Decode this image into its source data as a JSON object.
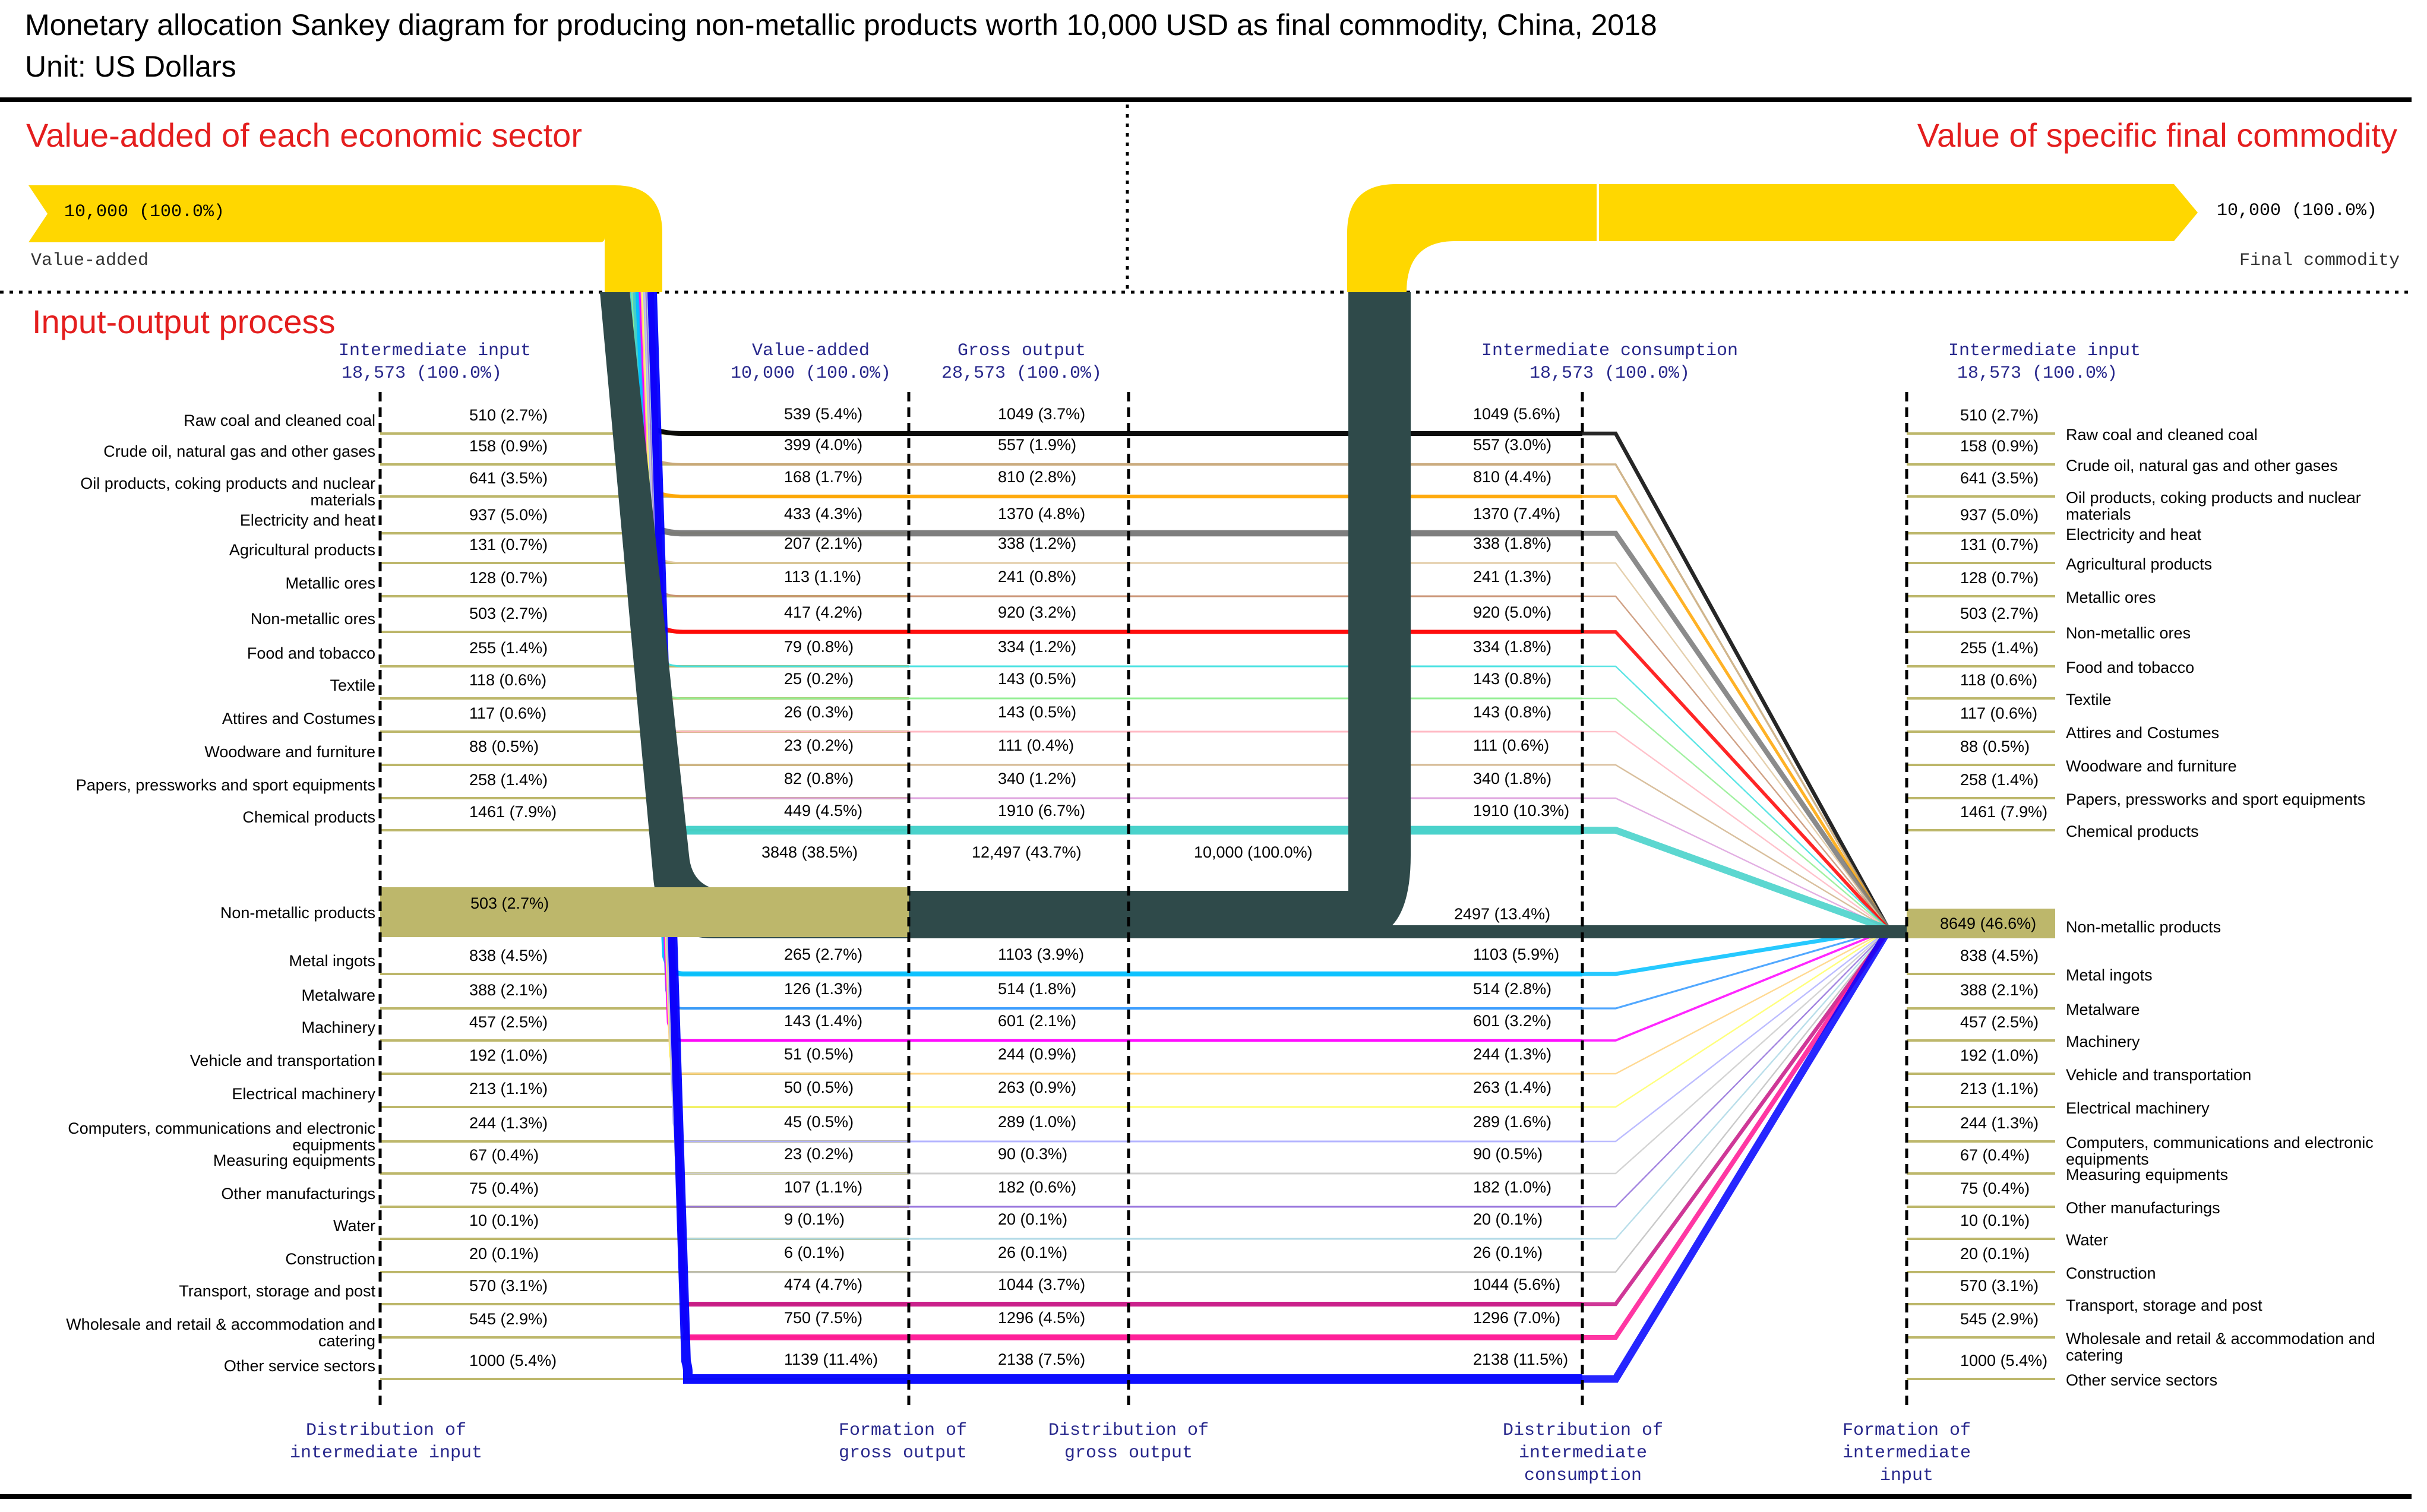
{
  "title_line1": "Monetary allocation Sankey diagram for producing non-metallic products worth 10,000 USD as final commodity, China, 2018",
  "title_line2": "Unit: US Dollars",
  "section_left": "Value-added of each economic sector",
  "section_right": "Value of specific final commodity",
  "section_io": "Input-output process",
  "top_left_value": "10,000 (100.0%)",
  "top_left_label": "Value-added",
  "top_right_value": "10,000 (100.0%)",
  "top_right_label": "Final commodity",
  "headers": {
    "intermediate_input": "Intermediate input",
    "intermediate_input_total": "18,573 (100.0%)",
    "value_added": "Value-added",
    "value_added_total": "10,000 (100.0%)",
    "gross_output": "Gross output",
    "gross_output_total": "28,573 (100.0%)",
    "intermediate_consumption": "Intermediate consumption",
    "intermediate_consumption_total": "18,573 (100.0%)",
    "intermediate_input_right": "Intermediate input",
    "intermediate_input_right_total": "18,573 (100.0%)"
  },
  "footers": {
    "f1": "Distribution of\nintermediate input",
    "f2": "Formation of\ngross output",
    "f3": "Distribution of\ngross output",
    "f4": "Distribution of\nintermediate\nconsumption",
    "f5": "Formation of\nintermediate\ninput"
  },
  "colors": {
    "yellow": "#ffd700",
    "dark": "#2f4a4a",
    "olive": "#bdb76b",
    "red_text": "#e41e1e",
    "blue": "#0000ff",
    "magenta": "#ff1493",
    "cyan": "#00bfff",
    "orange": "#ffa500",
    "gray": "#777777",
    "black": "#000000",
    "red": "#ff0000",
    "teal": "#40d0c8"
  },
  "nonmetal_center": {
    "va": "3848 (38.5%)",
    "gross": "12,497 (43.7%)",
    "final": "10,000 (100.0%)",
    "consumption": "2497 (13.4%)",
    "input_right": "8649 (46.6%)"
  },
  "sectors": [
    {
      "name": "Raw coal and cleaned coal",
      "ii": "510 (2.7%)",
      "va": "539 (5.4%)",
      "go": "1049 (3.7%)",
      "ic": "1049 (5.6%)",
      "ii_r": "510 (2.7%)",
      "color": "#000000"
    },
    {
      "name": "Crude oil, natural gas and other gases",
      "ii": "158 (0.9%)",
      "va": "399 (4.0%)",
      "go": "557 (1.9%)",
      "ic": "557 (3.0%)",
      "ii_r": "158 (0.9%)",
      "color": "#c8a878"
    },
    {
      "name": "Oil products, coking products and nuclear materials",
      "ii": "641 (3.5%)",
      "va": "168 (1.7%)",
      "go": "810 (2.8%)",
      "ic": "810 (4.4%)",
      "ii_r": "641 (3.5%)",
      "color": "#ffa500"
    },
    {
      "name": "Electricity and heat",
      "ii": "937 (5.0%)",
      "va": "433 (4.3%)",
      "go": "1370 (4.8%)",
      "ic": "1370 (7.4%)",
      "ii_r": "937 (5.0%)",
      "color": "#777777"
    },
    {
      "name": "Agricultural products",
      "ii": "131 (0.7%)",
      "va": "207 (2.1%)",
      "go": "338 (1.2%)",
      "ic": "338 (1.8%)",
      "ii_r": "131 (0.7%)",
      "color": "#e0c8a0"
    },
    {
      "name": "Metallic ores",
      "ii": "128 (0.7%)",
      "va": "113 (1.1%)",
      "go": "241 (0.8%)",
      "ic": "241 (1.3%)",
      "ii_r": "128 (0.7%)",
      "color": "#c89070"
    },
    {
      "name": "Non-metallic ores",
      "ii": "503 (2.7%)",
      "va": "417 (4.2%)",
      "go": "920 (3.2%)",
      "ic": "920 (5.0%)",
      "ii_r": "503 (2.7%)",
      "color": "#ff0000"
    },
    {
      "name": "Food and tobacco",
      "ii": "255 (1.4%)",
      "va": "79 (0.8%)",
      "go": "334 (1.2%)",
      "ic": "334 (1.8%)",
      "ii_r": "255 (1.4%)",
      "color": "#40e0e0"
    },
    {
      "name": "Textile",
      "ii": "118 (0.6%)",
      "va": "25 (0.2%)",
      "go": "143 (0.5%)",
      "ic": "143 (0.8%)",
      "ii_r": "118 (0.6%)",
      "color": "#90ee90"
    },
    {
      "name": "Attires and Costumes",
      "ii": "117 (0.6%)",
      "va": "26 (0.3%)",
      "go": "143 (0.5%)",
      "ic": "143 (0.8%)",
      "ii_r": "117 (0.6%)",
      "color": "#ffb6c1"
    },
    {
      "name": "Woodware and furniture",
      "ii": "88 (0.5%)",
      "va": "23 (0.2%)",
      "go": "111 (0.4%)",
      "ic": "111 (0.6%)",
      "ii_r": "88 (0.5%)",
      "color": "#d2b48c"
    },
    {
      "name": "Papers, pressworks and sport equipments",
      "ii": "258 (1.4%)",
      "va": "82 (0.8%)",
      "go": "340 (1.2%)",
      "ic": "340 (1.8%)",
      "ii_r": "258 (1.4%)",
      "color": "#dda0dd"
    },
    {
      "name": "Chemical products",
      "ii": "1461 (7.9%)",
      "va": "449 (4.5%)",
      "go": "1910 (6.7%)",
      "ic": "1910 (10.3%)",
      "ii_r": "1461 (7.9%)",
      "color": "#40d0c8"
    },
    {
      "name": "Metal ingots",
      "ii": "838 (4.5%)",
      "va": "265 (2.7%)",
      "go": "1103 (3.9%)",
      "ic": "1103 (5.9%)",
      "ii_r": "838 (4.5%)",
      "color": "#00bfff"
    },
    {
      "name": "Metalware",
      "ii": "388 (2.1%)",
      "va": "126 (1.3%)",
      "go": "514 (1.8%)",
      "ic": "514 (2.8%)",
      "ii_r": "388 (2.1%)",
      "color": "#3399ff"
    },
    {
      "name": "Machinery",
      "ii": "457 (2.5%)",
      "va": "143 (1.4%)",
      "go": "601 (2.1%)",
      "ic": "601 (3.2%)",
      "ii_r": "457 (2.5%)",
      "color": "#ff00ff"
    },
    {
      "name": "Vehicle and transportation",
      "ii": "192 (1.0%)",
      "va": "51 (0.5%)",
      "go": "244 (0.9%)",
      "ic": "244 (1.3%)",
      "ii_r": "192 (1.0%)",
      "color": "#ffd27f"
    },
    {
      "name": "Electrical machinery",
      "ii": "213 (1.1%)",
      "va": "50 (0.5%)",
      "go": "263 (0.9%)",
      "ic": "263 (1.4%)",
      "ii_r": "213 (1.1%)",
      "color": "#ffff66"
    },
    {
      "name": "Computers, communications and electronic equipments",
      "ii": "244 (1.3%)",
      "va": "45 (0.5%)",
      "go": "289 (1.0%)",
      "ic": "289 (1.6%)",
      "ii_r": "244 (1.3%)",
      "color": "#b0b0ff"
    },
    {
      "name": "Measuring equipments",
      "ii": "67 (0.4%)",
      "va": "23 (0.2%)",
      "go": "90 (0.3%)",
      "ic": "90 (0.5%)",
      "ii_r": "67 (0.4%)",
      "color": "#cccccc"
    },
    {
      "name": "Other manufacturings",
      "ii": "75 (0.4%)",
      "va": "107 (1.1%)",
      "go": "182 (0.6%)",
      "ic": "182 (1.0%)",
      "ii_r": "75 (0.4%)",
      "color": "#9370db"
    },
    {
      "name": "Water",
      "ii": "10 (0.1%)",
      "va": "9 (0.1%)",
      "go": "20 (0.1%)",
      "ic": "20 (0.1%)",
      "ii_r": "10 (0.1%)",
      "color": "#add8e6"
    },
    {
      "name": "Construction",
      "ii": "20 (0.1%)",
      "va": "6 (0.1%)",
      "go": "26 (0.1%)",
      "ic": "26 (0.1%)",
      "ii_r": "20 (0.1%)",
      "color": "#c0c0c0"
    },
    {
      "name": "Transport, storage and post",
      "ii": "570 (3.1%)",
      "va": "474 (4.7%)",
      "go": "1044 (3.7%)",
      "ic": "1044 (5.6%)",
      "ii_r": "570 (3.1%)",
      "color": "#c71585"
    },
    {
      "name": "Wholesale and retail & accommodation and catering",
      "ii": "545 (2.9%)",
      "va": "750 (7.5%)",
      "go": "1296 (4.5%)",
      "ic": "1296 (7.0%)",
      "ii_r": "545 (2.9%)",
      "color": "#ff1493"
    },
    {
      "name": "Other service sectors",
      "ii": "1000 (5.4%)",
      "va": "1139 (11.4%)",
      "go": "2138 (7.5%)",
      "ic": "2138 (11.5%)",
      "ii_r": "1000 (5.4%)",
      "color": "#0000ff"
    }
  ],
  "nonmetal_sector": {
    "name": "Non-metallic products",
    "ii": "503 (2.7%)"
  }
}
